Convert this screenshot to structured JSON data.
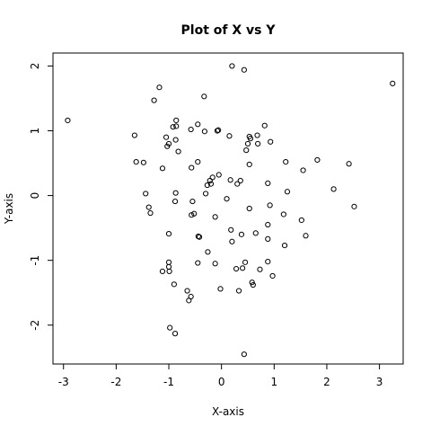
{
  "chart_data": {
    "type": "scatter",
    "title": "Plot of X vs Y",
    "xlabel": "X-axis",
    "ylabel": "Y-axis",
    "xlim": [
      -3.2,
      3.45
    ],
    "ylim": [
      -2.6,
      2.2
    ],
    "xticks": [
      -3,
      -2,
      -1,
      0,
      1,
      2,
      3
    ],
    "yticks": [
      -2,
      -1,
      0,
      1,
      2
    ],
    "grid": false,
    "legend": "none",
    "marker": "open-circle",
    "color": "#000000",
    "points": [
      {
        "x": -2.92,
        "y": 1.16
      },
      {
        "x": -1.65,
        "y": 0.93
      },
      {
        "x": -1.62,
        "y": 0.52
      },
      {
        "x": -1.48,
        "y": 0.51
      },
      {
        "x": -1.44,
        "y": 0.03
      },
      {
        "x": -1.38,
        "y": -0.18
      },
      {
        "x": -1.35,
        "y": -0.27
      },
      {
        "x": -1.28,
        "y": 1.47
      },
      {
        "x": -1.18,
        "y": 1.67
      },
      {
        "x": -1.12,
        "y": 0.42
      },
      {
        "x": -1.12,
        "y": -1.17
      },
      {
        "x": -1.05,
        "y": 0.9
      },
      {
        "x": -1.03,
        "y": 0.76
      },
      {
        "x": -1.0,
        "y": 0.8
      },
      {
        "x": -1.0,
        "y": -0.59
      },
      {
        "x": -1.0,
        "y": -1.1
      },
      {
        "x": -0.99,
        "y": -1.17
      },
      {
        "x": -1.0,
        "y": -1.03
      },
      {
        "x": -0.98,
        "y": -2.04
      },
      {
        "x": -0.92,
        "y": 1.06
      },
      {
        "x": -0.87,
        "y": 0.86
      },
      {
        "x": -0.86,
        "y": 1.16
      },
      {
        "x": -0.86,
        "y": 1.07
      },
      {
        "x": -0.87,
        "y": 0.04
      },
      {
        "x": -0.82,
        "y": 0.68
      },
      {
        "x": -0.88,
        "y": -0.09
      },
      {
        "x": -0.9,
        "y": -1.37
      },
      {
        "x": -0.88,
        "y": -2.13
      },
      {
        "x": -0.65,
        "y": -1.47
      },
      {
        "x": -0.62,
        "y": -1.62
      },
      {
        "x": -0.58,
        "y": -1.56
      },
      {
        "x": -0.58,
        "y": 1.02
      },
      {
        "x": -0.57,
        "y": 0.43
      },
      {
        "x": -0.57,
        "y": -0.3
      },
      {
        "x": -0.52,
        "y": -0.28
      },
      {
        "x": -0.55,
        "y": -0.09
      },
      {
        "x": -0.45,
        "y": 1.1
      },
      {
        "x": -0.45,
        "y": 0.52
      },
      {
        "x": -0.44,
        "y": -0.63
      },
      {
        "x": -0.42,
        "y": -0.64
      },
      {
        "x": -0.45,
        "y": -1.04
      },
      {
        "x": -0.33,
        "y": 1.53
      },
      {
        "x": -0.32,
        "y": 0.99
      },
      {
        "x": -0.3,
        "y": 0.03
      },
      {
        "x": -0.27,
        "y": 0.16
      },
      {
        "x": -0.22,
        "y": 0.23
      },
      {
        "x": -0.17,
        "y": 0.28
      },
      {
        "x": -0.2,
        "y": 0.18
      },
      {
        "x": -0.26,
        "y": -0.87
      },
      {
        "x": -0.12,
        "y": -0.33
      },
      {
        "x": -0.12,
        "y": -1.05
      },
      {
        "x": -0.08,
        "y": 1.0
      },
      {
        "x": -0.06,
        "y": 1.01
      },
      {
        "x": -0.05,
        "y": 0.32
      },
      {
        "x": -0.02,
        "y": -1.44
      },
      {
        "x": 0.1,
        "y": -0.05
      },
      {
        "x": 0.15,
        "y": 0.92
      },
      {
        "x": 0.17,
        "y": 0.24
      },
      {
        "x": 0.18,
        "y": -0.53
      },
      {
        "x": 0.2,
        "y": -0.71
      },
      {
        "x": 0.2,
        "y": 2.0
      },
      {
        "x": 0.28,
        "y": -1.13
      },
      {
        "x": 0.3,
        "y": 0.18
      },
      {
        "x": 0.33,
        "y": -1.47
      },
      {
        "x": 0.36,
        "y": 0.23
      },
      {
        "x": 0.38,
        "y": -0.6
      },
      {
        "x": 0.4,
        "y": -1.12
      },
      {
        "x": 0.43,
        "y": 1.94
      },
      {
        "x": 0.43,
        "y": -2.45
      },
      {
        "x": 0.45,
        "y": -1.03
      },
      {
        "x": 0.47,
        "y": 0.7
      },
      {
        "x": 0.5,
        "y": 0.8
      },
      {
        "x": 0.53,
        "y": 0.91
      },
      {
        "x": 0.55,
        "y": 0.88
      },
      {
        "x": 0.53,
        "y": 0.48
      },
      {
        "x": 0.53,
        "y": -0.2
      },
      {
        "x": 0.58,
        "y": -1.34
      },
      {
        "x": 0.6,
        "y": -1.38
      },
      {
        "x": 0.65,
        "y": -0.58
      },
      {
        "x": 0.68,
        "y": 0.93
      },
      {
        "x": 0.69,
        "y": 0.8
      },
      {
        "x": 0.73,
        "y": -1.14
      },
      {
        "x": 0.82,
        "y": 1.08
      },
      {
        "x": 0.88,
        "y": 0.19
      },
      {
        "x": 0.88,
        "y": -0.45
      },
      {
        "x": 0.88,
        "y": -0.67
      },
      {
        "x": 0.88,
        "y": -1.02
      },
      {
        "x": 0.92,
        "y": -0.15
      },
      {
        "x": 0.93,
        "y": 0.83
      },
      {
        "x": 0.97,
        "y": -1.24
      },
      {
        "x": 1.18,
        "y": -0.29
      },
      {
        "x": 1.2,
        "y": -0.77
      },
      {
        "x": 1.22,
        "y": 0.52
      },
      {
        "x": 1.25,
        "y": 0.06
      },
      {
        "x": 1.52,
        "y": -0.38
      },
      {
        "x": 1.55,
        "y": 0.39
      },
      {
        "x": 1.6,
        "y": -0.62
      },
      {
        "x": 1.82,
        "y": 0.55
      },
      {
        "x": 2.13,
        "y": 0.1
      },
      {
        "x": 2.42,
        "y": 0.49
      },
      {
        "x": 2.52,
        "y": -0.17
      },
      {
        "x": 3.25,
        "y": 1.73
      }
    ]
  }
}
